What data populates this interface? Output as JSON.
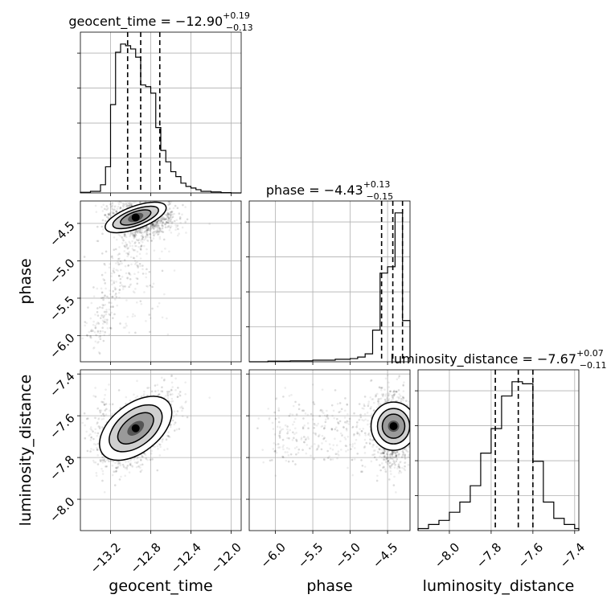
{
  "chart_data": {
    "type": "corner",
    "parameters": [
      "geocent_time",
      "phase",
      "luminosity_distance"
    ],
    "titles": [
      {
        "param": "geocent_time",
        "text": "geocent_time = −12.90",
        "sup": "+0.19",
        "sub": "−0.13"
      },
      {
        "param": "phase",
        "text": "phase = −4.43",
        "sup": "+0.13",
        "sub": "−0.15"
      },
      {
        "param": "luminosity_distance",
        "text": "luminosity_distance = −7.67",
        "sup": "+0.07",
        "sub": "−0.11"
      }
    ],
    "axis_labels": {
      "geocent_time": "geocent_time",
      "phase": "phase",
      "luminosity_distance": "luminosity_distance"
    },
    "ranges": {
      "geocent_time": [
        -13.5,
        -11.9
      ],
      "phase": [
        -6.35,
        -4.2
      ],
      "luminosity_distance": [
        -8.15,
        -7.38
      ]
    },
    "ticks": {
      "geocent_time": [
        -13.2,
        -12.8,
        -12.4,
        -12.0
      ],
      "phase": [
        -6.0,
        -5.5,
        -5.0,
        -4.5
      ],
      "luminosity_distance": [
        -8.0,
        -7.8,
        -7.6,
        -7.4
      ]
    },
    "tick_labels": {
      "geocent_time": [
        "−13.2",
        "−12.8",
        "−12.4",
        "−12.0"
      ],
      "phase": [
        "−6.0",
        "−5.5",
        "−5.0",
        "−4.5"
      ],
      "luminosity_distance": [
        "−8.0",
        "−7.8",
        "−7.6",
        "−7.4"
      ]
    },
    "quantiles": {
      "geocent_time": [
        -13.03,
        -12.9,
        -12.71
      ],
      "phase": [
        -4.58,
        -4.43,
        -4.3
      ],
      "luminosity_distance": [
        -7.78,
        -7.67,
        -7.6
      ]
    },
    "histograms": {
      "geocent_time": {
        "edges": [
          -13.5,
          -13.4,
          -13.3,
          -13.25,
          -13.2,
          -13.15,
          -13.1,
          -13.05,
          -13.0,
          -12.95,
          -12.9,
          -12.85,
          -12.8,
          -12.75,
          -12.7,
          -12.65,
          -12.6,
          -12.55,
          -12.5,
          -12.45,
          -12.4,
          -12.35,
          -12.3,
          -12.2,
          -12.1,
          -12.0,
          -11.9
        ],
        "counts": [
          0.2,
          0.5,
          2.5,
          8.0,
          27.0,
          43.0,
          45.5,
          45.0,
          44.0,
          41.5,
          33.0,
          32.5,
          30.5,
          20.0,
          13.0,
          9.5,
          6.5,
          5.0,
          3.0,
          2.0,
          1.5,
          1.0,
          0.5,
          0.3,
          0.1,
          0.0
        ]
      },
      "phase": {
        "edges": [
          -6.35,
          -6.1,
          -5.8,
          -5.5,
          -5.2,
          -5.0,
          -4.9,
          -4.8,
          -4.7,
          -4.6,
          -4.5,
          -4.4,
          -4.3,
          -4.2
        ],
        "counts": [
          0,
          0.2,
          0.3,
          0.5,
          0.8,
          1.0,
          1.5,
          2.5,
          10.0,
          28.0,
          30.0,
          47.0,
          13.0
        ]
      },
      "luminosity_distance": {
        "edges": [
          -8.15,
          -8.1,
          -8.05,
          -8.0,
          -7.95,
          -7.9,
          -7.85,
          -7.8,
          -7.75,
          -7.7,
          -7.65,
          -7.6,
          -7.55,
          -7.5,
          -7.45,
          -7.4,
          -7.38
        ],
        "counts": [
          0.5,
          1.5,
          2.5,
          4.5,
          7.0,
          11.0,
          19.0,
          25.0,
          33.0,
          36.5,
          36.0,
          17.0,
          7.0,
          3.0,
          1.5,
          0.5
        ]
      }
    },
    "pair_modes": [
      {
        "x": "geocent_time",
        "y": "phase",
        "peak": [
          -12.95,
          -4.42
        ]
      },
      {
        "x": "geocent_time",
        "y": "luminosity_distance",
        "peak": [
          -12.95,
          -7.66
        ]
      },
      {
        "x": "phase",
        "y": "luminosity_distance",
        "peak": [
          -4.42,
          -7.65
        ]
      }
    ],
    "grid": true
  }
}
